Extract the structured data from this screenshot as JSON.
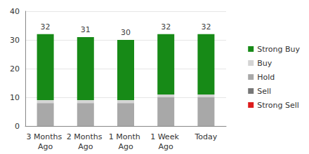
{
  "chart_data": {
    "type": "bar",
    "stacked": true,
    "grid": true,
    "legend": "right",
    "categories": [
      "3 Months Ago",
      "2 Months Ago",
      "1 Month Ago",
      "1 Week Ago",
      "Today"
    ],
    "series": [
      {
        "name": "Hold",
        "color": "#a8a8a8",
        "values": [
          8,
          8,
          8,
          10,
          10
        ]
      },
      {
        "name": "Buy",
        "color": "#d4d4d4",
        "values": [
          1,
          1,
          1,
          1,
          1
        ]
      },
      {
        "name": "Strong Buy",
        "color": "#178a17",
        "values": [
          23,
          22,
          21,
          21,
          21
        ]
      },
      {
        "name": "Sell",
        "color": "#777777",
        "values": [
          0,
          0,
          0,
          0,
          0
        ]
      },
      {
        "name": "Strong Sell",
        "color": "#dd1c1c",
        "values": [
          0,
          0,
          0,
          0,
          0
        ]
      }
    ],
    "legend_order": [
      "Strong Buy",
      "Buy",
      "Hold",
      "Sell",
      "Strong Sell"
    ],
    "totals": [
      32,
      31,
      30,
      32,
      32
    ],
    "ylim": [
      0,
      40
    ],
    "yticks": [
      0,
      10,
      20,
      30,
      40
    ]
  }
}
